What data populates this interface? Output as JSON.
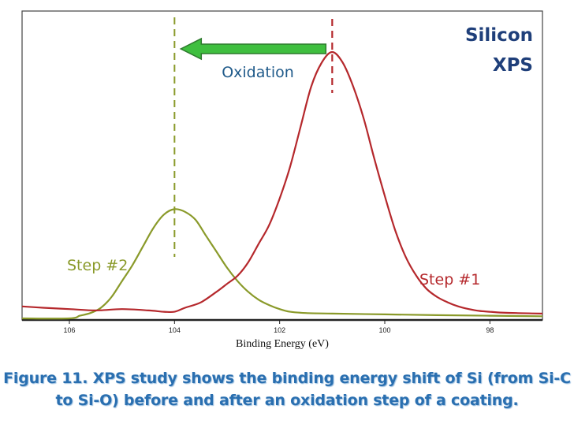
{
  "chart_data": {
    "type": "line",
    "title": "Silicon XPS",
    "title_lines": [
      "Silicon",
      "XPS"
    ],
    "xlabel": "Binding Energy (eV)",
    "ylabel": "",
    "x_reversed": true,
    "xlim": [
      106.9,
      97.0
    ],
    "ylim": [
      0,
      1.0
    ],
    "xticks": [
      106,
      104,
      102,
      100,
      98
    ],
    "xtick_labels": [
      "106",
      "104",
      "102",
      "100",
      "98"
    ],
    "grid": false,
    "series": [
      {
        "name": "Step #1",
        "color": "#b5282c",
        "x": [
          106.9,
          106.5,
          106.0,
          105.5,
          105.0,
          104.5,
          104.2,
          104.0,
          103.8,
          103.5,
          103.2,
          103.0,
          102.8,
          102.6,
          102.4,
          102.2,
          102.0,
          101.8,
          101.6,
          101.4,
          101.2,
          101.0,
          100.8,
          100.6,
          100.4,
          100.2,
          100.0,
          99.8,
          99.6,
          99.4,
          99.2,
          99.0,
          98.8,
          98.6,
          98.4,
          98.2,
          98.0,
          97.8,
          97.5,
          97.0
        ],
        "y": [
          0.045,
          0.04,
          0.035,
          0.03,
          0.035,
          0.03,
          0.025,
          0.025,
          0.04,
          0.06,
          0.1,
          0.13,
          0.16,
          0.21,
          0.28,
          0.35,
          0.45,
          0.57,
          0.72,
          0.87,
          0.96,
          1.0,
          0.96,
          0.87,
          0.75,
          0.6,
          0.46,
          0.33,
          0.23,
          0.16,
          0.11,
          0.08,
          0.06,
          0.045,
          0.035,
          0.028,
          0.025,
          0.022,
          0.02,
          0.018
        ]
      },
      {
        "name": "Step #2",
        "color": "#8a9a2a",
        "x": [
          106.9,
          106.0,
          105.8,
          105.6,
          105.4,
          105.2,
          105.0,
          104.8,
          104.6,
          104.4,
          104.2,
          104.0,
          103.8,
          103.6,
          103.4,
          103.2,
          103.0,
          102.8,
          102.6,
          102.4,
          102.2,
          102.0,
          101.8,
          101.5,
          101.0,
          100.0,
          99.0,
          98.0,
          97.0
        ],
        "y": [
          0.0,
          0.0,
          0.01,
          0.02,
          0.04,
          0.08,
          0.14,
          0.2,
          0.27,
          0.34,
          0.39,
          0.41,
          0.4,
          0.37,
          0.31,
          0.25,
          0.19,
          0.14,
          0.1,
          0.07,
          0.05,
          0.035,
          0.025,
          0.02,
          0.018,
          0.015,
          0.012,
          0.01,
          0.008
        ]
      }
    ],
    "annotations": {
      "step1_label": "Step #1",
      "step2_label": "Step #2",
      "arrow_label": "Oxidation",
      "step1_peak_x": 101.0,
      "step2_peak_x": 104.0
    }
  },
  "caption": {
    "line1": "Figure 11. XPS study shows the binding energy shift of Si (from Si-C",
    "line2": "to Si-O) before and after an oxidation step of a coating."
  },
  "colors": {
    "step1": "#b5282c",
    "step2": "#8a9a2a",
    "arrow_fill": "#3fbf3f",
    "title": "#1f3f7a",
    "oxidation_text": "#1f5a8a",
    "caption": "#2a6fb0"
  }
}
